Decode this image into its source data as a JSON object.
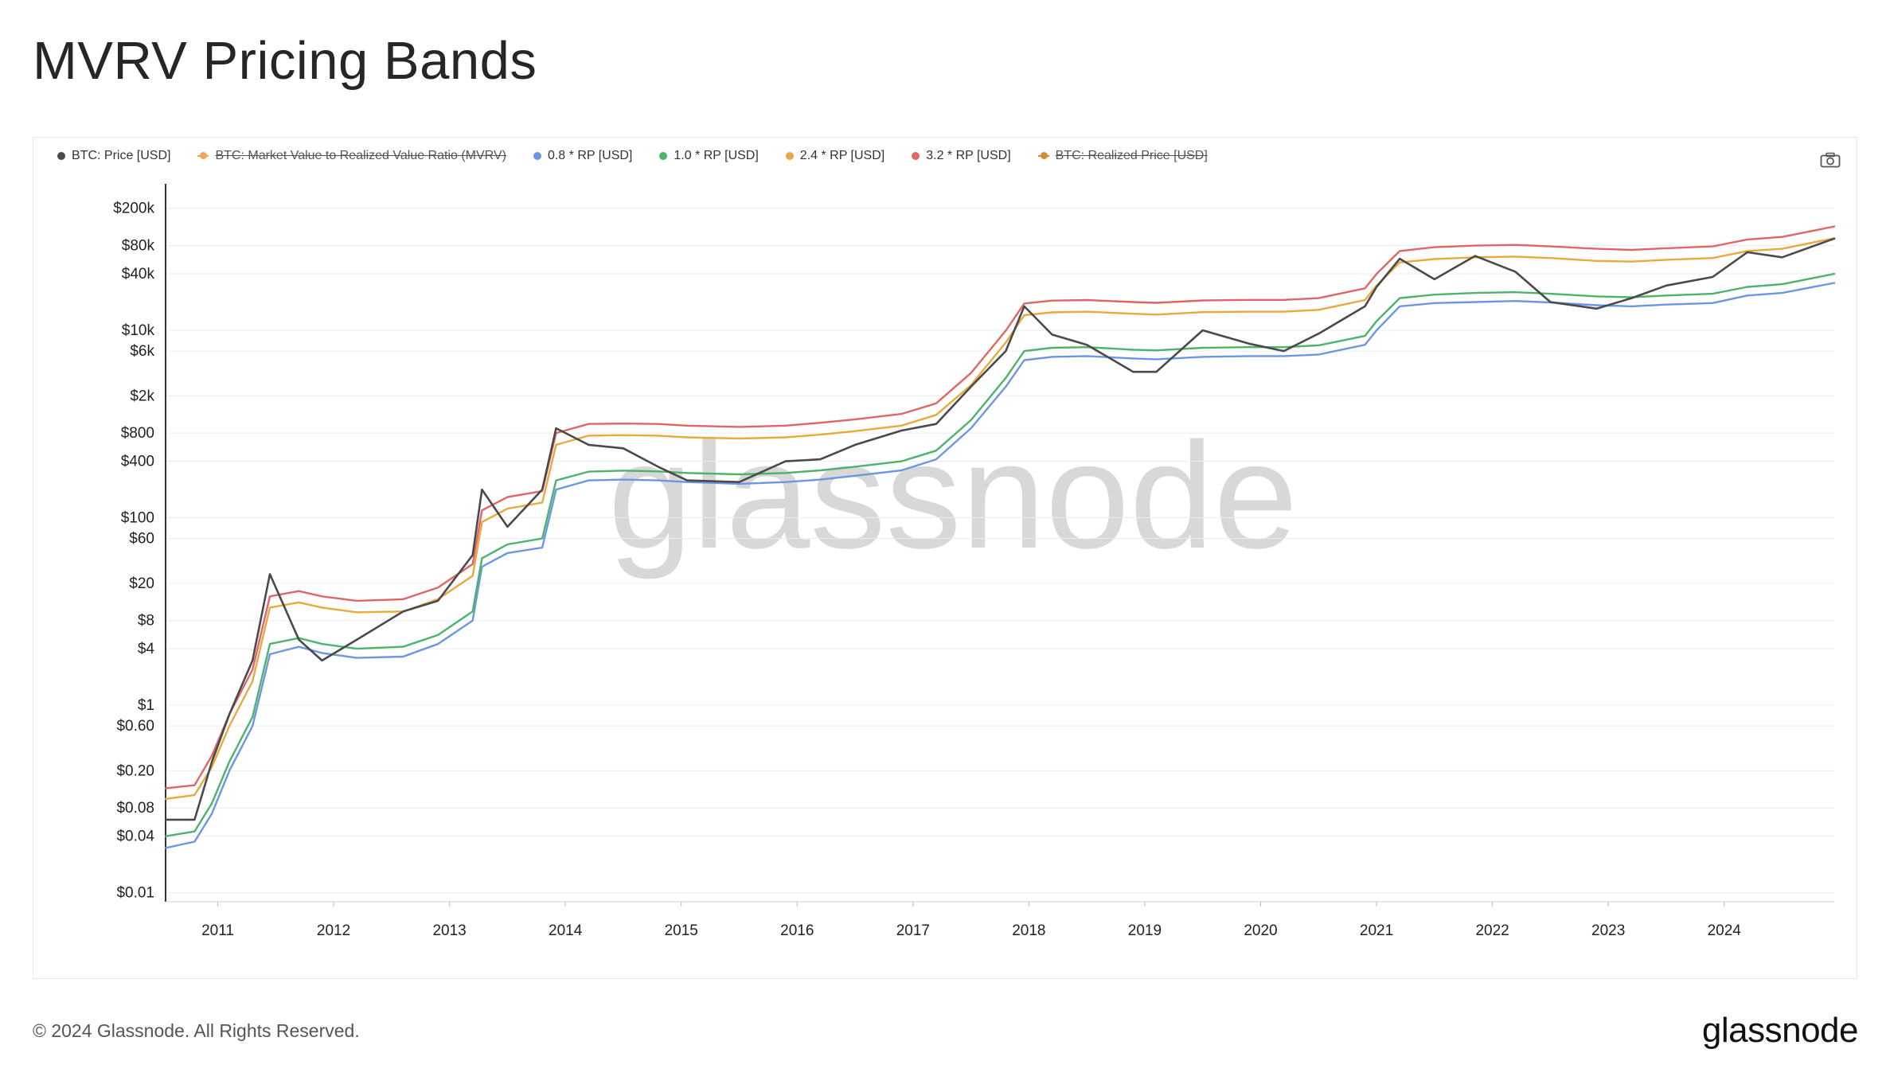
{
  "page": {
    "title": "MVRV Pricing Bands",
    "copyright": "© 2024 Glassnode. All Rights Reserved.",
    "logo_text": "glassnode",
    "watermark": "glassnode"
  },
  "toolbar": {
    "camera_icon": "camera-icon"
  },
  "legend": [
    {
      "label": "BTC: Price [USD]",
      "color": "#4a4a4a",
      "enabled": true,
      "marker": "dot"
    },
    {
      "label": "BTC: Market Value to Realized Value Ratio (MVRV)",
      "color": "#f2a65a",
      "enabled": false,
      "marker": "line"
    },
    {
      "label": "0.8 * RP [USD]",
      "color": "#6c96e4",
      "enabled": true,
      "marker": "dot"
    },
    {
      "label": "1.0 * RP [USD]",
      "color": "#4cb36b",
      "enabled": true,
      "marker": "dot"
    },
    {
      "label": "2.4 * RP [USD]",
      "color": "#e8a93e",
      "enabled": true,
      "marker": "dot"
    },
    {
      "label": "3.2 * RP [USD]",
      "color": "#e06666",
      "enabled": true,
      "marker": "dot"
    },
    {
      "label": "BTC: Realized Price [USD]",
      "color": "#d88a2e",
      "enabled": false,
      "marker": "line"
    }
  ],
  "chart_data": {
    "type": "line",
    "title": "MVRV Pricing Bands",
    "y_scale": "log",
    "ylim": [
      0.008,
      300000
    ],
    "xlim": [
      2010.55,
      2024.95
    ],
    "grid": true,
    "legend_position": "top-left",
    "y_ticks": [
      {
        "value": 200000,
        "label": "$200k"
      },
      {
        "value": 80000,
        "label": "$80k"
      },
      {
        "value": 40000,
        "label": "$40k"
      },
      {
        "value": 10000,
        "label": "$10k"
      },
      {
        "value": 6000,
        "label": "$6k"
      },
      {
        "value": 2000,
        "label": "$2k"
      },
      {
        "value": 800,
        "label": "$800"
      },
      {
        "value": 400,
        "label": "$400"
      },
      {
        "value": 100,
        "label": "$100"
      },
      {
        "value": 60,
        "label": "$60"
      },
      {
        "value": 20,
        "label": "$20"
      },
      {
        "value": 8,
        "label": "$8"
      },
      {
        "value": 4,
        "label": "$4"
      },
      {
        "value": 1,
        "label": "$1"
      },
      {
        "value": 0.6,
        "label": "$0.60"
      },
      {
        "value": 0.2,
        "label": "$0.20"
      },
      {
        "value": 0.08,
        "label": "$0.08"
      },
      {
        "value": 0.04,
        "label": "$0.04"
      },
      {
        "value": 0.01,
        "label": "$0.01"
      }
    ],
    "x_ticks": [
      {
        "value": 2011,
        "label": "2011"
      },
      {
        "value": 2012,
        "label": "2012"
      },
      {
        "value": 2013,
        "label": "2013"
      },
      {
        "value": 2014,
        "label": "2014"
      },
      {
        "value": 2015,
        "label": "2015"
      },
      {
        "value": 2016,
        "label": "2016"
      },
      {
        "value": 2017,
        "label": "2017"
      },
      {
        "value": 2018,
        "label": "2018"
      },
      {
        "value": 2019,
        "label": "2019"
      },
      {
        "value": 2020,
        "label": "2020"
      },
      {
        "value": 2021,
        "label": "2021"
      },
      {
        "value": 2022,
        "label": "2022"
      },
      {
        "value": 2023,
        "label": "2023"
      },
      {
        "value": 2024,
        "label": "2024"
      }
    ],
    "x": [
      2010.55,
      2010.8,
      2010.95,
      2011.1,
      2011.3,
      2011.45,
      2011.7,
      2011.9,
      2012.2,
      2012.6,
      2012.9,
      2013.2,
      2013.28,
      2013.5,
      2013.8,
      2013.92,
      2014.2,
      2014.5,
      2014.8,
      2015.05,
      2015.5,
      2015.9,
      2016.2,
      2016.5,
      2016.9,
      2017.2,
      2017.5,
      2017.8,
      2017.96,
      2018.2,
      2018.5,
      2018.9,
      2019.1,
      2019.5,
      2019.9,
      2020.2,
      2020.5,
      2020.9,
      2021.0,
      2021.2,
      2021.5,
      2021.85,
      2022.2,
      2022.5,
      2022.9,
      2023.2,
      2023.5,
      2023.9,
      2024.2,
      2024.5,
      2024.95
    ],
    "series": [
      {
        "name": "BTC: Price [USD]",
        "color": "#4a4a4a",
        "values": [
          0.06,
          0.06,
          0.25,
          0.8,
          3,
          25,
          5,
          3,
          5,
          10,
          13,
          40,
          200,
          80,
          200,
          900,
          600,
          550,
          350,
          250,
          240,
          400,
          420,
          600,
          850,
          1000,
          2500,
          6000,
          18000,
          9000,
          7000,
          3600,
          3600,
          10000,
          7200,
          6000,
          9200,
          18000,
          29000,
          58000,
          35000,
          62000,
          42000,
          20000,
          17000,
          22000,
          30000,
          37000,
          68000,
          60000,
          95000
        ]
      },
      {
        "name": "0.8 * RP [USD]",
        "color": "#6c96e4",
        "values": [
          0.03,
          0.035,
          0.07,
          0.2,
          0.6,
          3.5,
          4.2,
          3.6,
          3.2,
          3.3,
          4.5,
          8,
          30,
          42,
          48,
          200,
          250,
          255,
          250,
          240,
          230,
          240,
          255,
          280,
          320,
          420,
          900,
          2500,
          4800,
          5200,
          5300,
          5000,
          4900,
          5200,
          5300,
          5300,
          5500,
          7000,
          10000,
          18000,
          19500,
          20000,
          20500,
          19800,
          18500,
          18000,
          18800,
          19500,
          23500,
          25000,
          32000
        ]
      },
      {
        "name": "1.0 * RP [USD]",
        "color": "#4cb36b",
        "values": [
          0.04,
          0.045,
          0.09,
          0.25,
          0.75,
          4.5,
          5.2,
          4.5,
          4.0,
          4.2,
          5.6,
          10,
          37,
          52,
          60,
          250,
          310,
          318,
          312,
          300,
          290,
          300,
          320,
          350,
          400,
          520,
          1100,
          3100,
          6000,
          6500,
          6600,
          6200,
          6100,
          6500,
          6600,
          6600,
          6900,
          8700,
          12500,
          22000,
          24000,
          25000,
          25500,
          24500,
          23000,
          22500,
          23500,
          24500,
          29000,
          31000,
          40000
        ]
      },
      {
        "name": "2.4 * RP [USD]",
        "color": "#e8a93e",
        "values": [
          0.1,
          0.11,
          0.22,
          0.6,
          1.8,
          11,
          12.5,
          11,
          9.8,
          10,
          13.5,
          24,
          90,
          125,
          145,
          600,
          750,
          760,
          750,
          720,
          700,
          720,
          770,
          840,
          960,
          1250,
          2600,
          7400,
          14500,
          15500,
          15800,
          15000,
          14700,
          15600,
          15800,
          15800,
          16500,
          21000,
          30000,
          53000,
          57500,
          60000,
          61000,
          59000,
          55000,
          54000,
          56500,
          59000,
          70000,
          74000,
          96000
        ]
      },
      {
        "name": "3.2 * RP [USD]",
        "color": "#e06666",
        "values": [
          0.13,
          0.14,
          0.29,
          0.8,
          2.4,
          14.5,
          16.5,
          14.5,
          13,
          13.5,
          18,
          32,
          120,
          166,
          192,
          800,
          1000,
          1010,
          1000,
          960,
          930,
          960,
          1030,
          1120,
          1280,
          1660,
          3500,
          9900,
          19300,
          20700,
          21000,
          20000,
          19600,
          20800,
          21100,
          21100,
          22000,
          28000,
          40000,
          70000,
          77000,
          80000,
          81500,
          78500,
          74000,
          72000,
          75000,
          78500,
          93000,
          99000,
          128000
        ]
      }
    ]
  }
}
